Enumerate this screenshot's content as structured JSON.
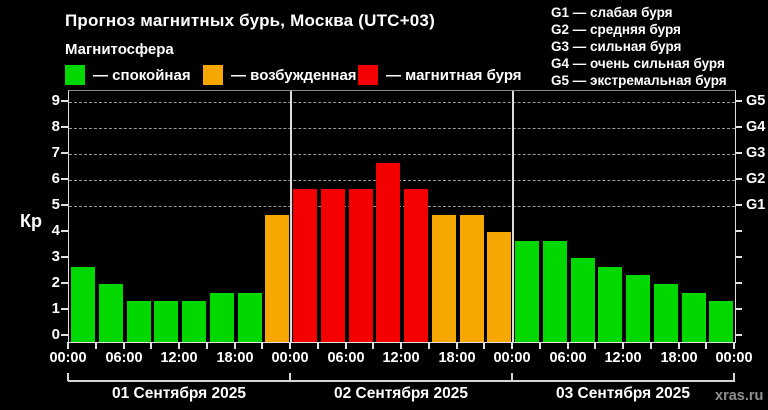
{
  "title": "Прогноз магнитных бурь, Москва (UTC+03)",
  "subtitle": "Магнитосфера",
  "watermark": "xras.ru",
  "colors": {
    "quiet": "#00d800",
    "disturbed": "#f7a800",
    "storm": "#f40000",
    "background": "#000000",
    "text": "#ffffff",
    "grid": "#9a9a9a",
    "axis": "#e0e0e0",
    "watermark": "#8f8f8f"
  },
  "legend": {
    "items": [
      {
        "name": "quiet",
        "label": "— спокойная",
        "color": "#00d800"
      },
      {
        "name": "disturbed",
        "label": "— возбужденная",
        "color": "#f7a800"
      },
      {
        "name": "storm",
        "label": "— магнитная буря",
        "color": "#f40000"
      }
    ]
  },
  "g_legend": [
    "G1 — слабая буря",
    "G2 — средняя буря",
    "G3 — сильная буря",
    "G4 — очень сильная буря",
    "G5 — экстремальная буря"
  ],
  "chart_data": {
    "type": "bar",
    "title": "Прогноз магнитных бурь, Москва (UTC+03)",
    "ylabel": "Кр",
    "ylim": [
      0,
      9.2
    ],
    "yticks": [
      0,
      1,
      2,
      3,
      4,
      5,
      6,
      7,
      8,
      9
    ],
    "grid": "dashed horizontal at Kp 5-9",
    "grid_levels_kp": [
      5,
      6,
      7,
      8,
      9
    ],
    "right_axis_labels": [
      {
        "label": "G1",
        "kp": 5
      },
      {
        "label": "G2",
        "kp": 6
      },
      {
        "label": "G3",
        "kp": 7
      },
      {
        "label": "G4",
        "kp": 8
      },
      {
        "label": "G5",
        "kp": 9
      }
    ],
    "bar_interval_hours": 3,
    "x_tick_labels": [
      "00:00",
      "06:00",
      "12:00",
      "18:00",
      "00:00",
      "06:00",
      "12:00",
      "18:00",
      "00:00",
      "06:00",
      "12:00",
      "18:00",
      "00:00"
    ],
    "legend_position": "top",
    "days": [
      {
        "label": "01 Сентября 2025",
        "values": [
          2.67,
          2.0,
          1.33,
          1.33,
          1.33,
          1.67,
          1.67,
          4.67
        ],
        "statuses": [
          "quiet",
          "quiet",
          "quiet",
          "quiet",
          "quiet",
          "quiet",
          "quiet",
          "disturbed"
        ]
      },
      {
        "label": "02 Сентября 2025",
        "values": [
          5.67,
          5.67,
          5.67,
          6.67,
          5.67,
          4.67,
          4.67,
          4.0
        ],
        "statuses": [
          "storm",
          "storm",
          "storm",
          "storm",
          "storm",
          "disturbed",
          "disturbed",
          "disturbed"
        ]
      },
      {
        "label": "03 Сентября 2025",
        "values": [
          3.67,
          3.67,
          3.0,
          2.67,
          2.33,
          2.0,
          1.67,
          1.33
        ],
        "statuses": [
          "quiet",
          "quiet",
          "quiet",
          "quiet",
          "quiet",
          "quiet",
          "quiet",
          "quiet"
        ]
      }
    ]
  }
}
